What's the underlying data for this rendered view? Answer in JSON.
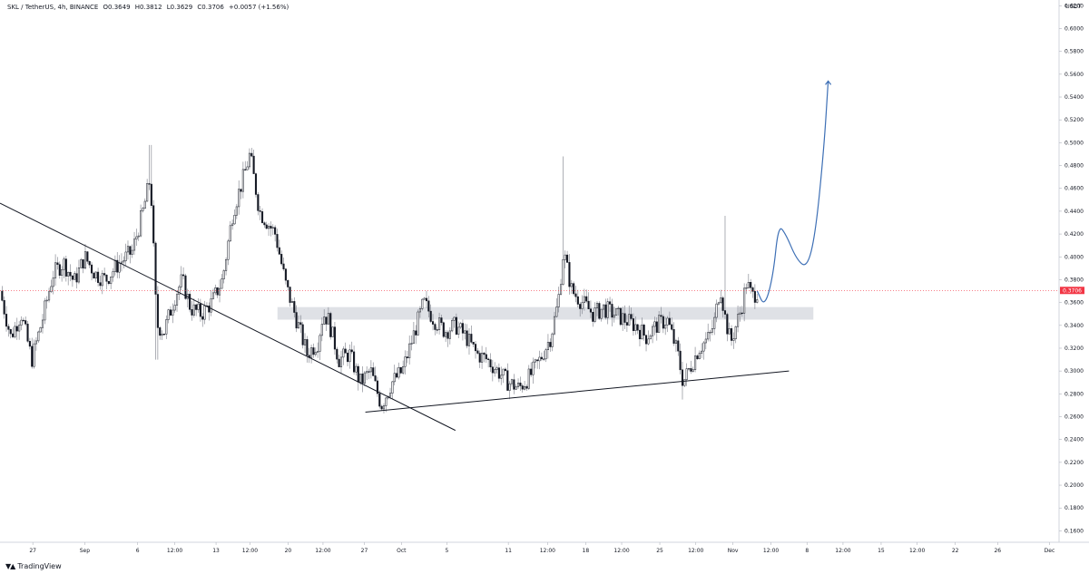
{
  "header": {
    "symbol": "SKL / TetherUS, 4h, BINANCE",
    "open": "O0.3649",
    "high": "H0.3812",
    "low": "L0.3629",
    "close": "C0.3706",
    "change": "+0.0057 (+1.56%)"
  },
  "brand": {
    "logo_icon": "tradingview-logo-icon",
    "name": "TradingView"
  },
  "chart_data": {
    "type": "candlestick",
    "y_unit": "USDT",
    "ylim": [
      0.15,
      0.625
    ],
    "y_ticks": [
      "0.6200",
      "0.6000",
      "0.5800",
      "0.5600",
      "0.5400",
      "0.5200",
      "0.5000",
      "0.4800",
      "0.4600",
      "0.4400",
      "0.4200",
      "0.4000",
      "0.3800",
      "0.3600",
      "0.3400",
      "0.3200",
      "0.3000",
      "0.2800",
      "0.2600",
      "0.2400",
      "0.2200",
      "0.2000",
      "0.1800",
      "0.1600"
    ],
    "y_tick_values": [
      0.62,
      0.6,
      0.58,
      0.56,
      0.54,
      0.52,
      0.5,
      0.48,
      0.46,
      0.44,
      0.42,
      0.4,
      0.38,
      0.36,
      0.34,
      0.32,
      0.3,
      0.28,
      0.26,
      0.24,
      0.22,
      0.2,
      0.18,
      0.16
    ],
    "x_tick_labels": [
      "27",
      "Sep",
      "6",
      "12:00",
      "13",
      "12:00",
      "20",
      "12:00",
      "27",
      "Oct",
      "5",
      "11",
      "12:00",
      "18",
      "12:00",
      "25",
      "12:00",
      "Nov",
      "12:00",
      "8",
      "12:00",
      "15",
      "12:00",
      "22",
      "26",
      "Dec"
    ],
    "x_tick_fracs": [
      0.031,
      0.08,
      0.13,
      0.165,
      0.204,
      0.236,
      0.272,
      0.305,
      0.344,
      0.379,
      0.422,
      0.48,
      0.517,
      0.553,
      0.587,
      0.623,
      0.657,
      0.692,
      0.728,
      0.762,
      0.796,
      0.832,
      0.866,
      0.902,
      0.942,
      0.991
    ],
    "current_price": 0.3706,
    "current_price_label": "0.3706",
    "price_path": [
      [
        0.0,
        0.37
      ],
      [
        0.01,
        0.33
      ],
      [
        0.02,
        0.35
      ],
      [
        0.03,
        0.31
      ],
      [
        0.04,
        0.345
      ],
      [
        0.05,
        0.385
      ],
      [
        0.06,
        0.395
      ],
      [
        0.07,
        0.378
      ],
      [
        0.08,
        0.4
      ],
      [
        0.09,
        0.385
      ],
      [
        0.1,
        0.38
      ],
      [
        0.11,
        0.392
      ],
      [
        0.125,
        0.405
      ],
      [
        0.135,
        0.44
      ],
      [
        0.142,
        0.47
      ],
      [
        0.148,
        0.34
      ],
      [
        0.155,
        0.335
      ],
      [
        0.165,
        0.365
      ],
      [
        0.172,
        0.38
      ],
      [
        0.18,
        0.355
      ],
      [
        0.19,
        0.35
      ],
      [
        0.2,
        0.36
      ],
      [
        0.21,
        0.38
      ],
      [
        0.22,
        0.44
      ],
      [
        0.23,
        0.47
      ],
      [
        0.236,
        0.49
      ],
      [
        0.245,
        0.44
      ],
      [
        0.26,
        0.42
      ],
      [
        0.27,
        0.375
      ],
      [
        0.28,
        0.345
      ],
      [
        0.29,
        0.315
      ],
      [
        0.3,
        0.325
      ],
      [
        0.305,
        0.35
      ],
      [
        0.31,
        0.345
      ],
      [
        0.32,
        0.31
      ],
      [
        0.33,
        0.315
      ],
      [
        0.34,
        0.29
      ],
      [
        0.35,
        0.3
      ],
      [
        0.36,
        0.27
      ],
      [
        0.37,
        0.29
      ],
      [
        0.38,
        0.3
      ],
      [
        0.39,
        0.33
      ],
      [
        0.4,
        0.36
      ],
      [
        0.41,
        0.345
      ],
      [
        0.42,
        0.335
      ],
      [
        0.43,
        0.34
      ],
      [
        0.44,
        0.33
      ],
      [
        0.45,
        0.315
      ],
      [
        0.46,
        0.31
      ],
      [
        0.47,
        0.3
      ],
      [
        0.48,
        0.29
      ],
      [
        0.49,
        0.285
      ],
      [
        0.5,
        0.295
      ],
      [
        0.51,
        0.31
      ],
      [
        0.52,
        0.33
      ],
      [
        0.527,
        0.36
      ],
      [
        0.532,
        0.405
      ],
      [
        0.54,
        0.37
      ],
      [
        0.55,
        0.36
      ],
      [
        0.56,
        0.35
      ],
      [
        0.57,
        0.355
      ],
      [
        0.58,
        0.35
      ],
      [
        0.59,
        0.345
      ],
      [
        0.6,
        0.34
      ],
      [
        0.61,
        0.33
      ],
      [
        0.62,
        0.34
      ],
      [
        0.63,
        0.345
      ],
      [
        0.64,
        0.315
      ],
      [
        0.645,
        0.29
      ],
      [
        0.65,
        0.3
      ],
      [
        0.66,
        0.32
      ],
      [
        0.67,
        0.33
      ],
      [
        0.675,
        0.345
      ],
      [
        0.68,
        0.375
      ],
      [
        0.685,
        0.345
      ],
      [
        0.69,
        0.325
      ],
      [
        0.7,
        0.355
      ],
      [
        0.705,
        0.378
      ],
      [
        0.71,
        0.365
      ],
      [
        0.715,
        0.37
      ]
    ],
    "annotations": {
      "descending_trendline": [
        [
          0.0,
          0.447
        ],
        [
          0.43,
          0.248
        ]
      ],
      "ascending_trendline": [
        [
          0.345,
          0.264
        ],
        [
          0.745,
          0.3
        ]
      ],
      "support_zone": {
        "price_top": 0.356,
        "price_bottom": 0.345,
        "from": 0.262,
        "to": 0.768
      },
      "projection_path": [
        [
          0.715,
          0.37
        ],
        [
          0.722,
          0.356
        ],
        [
          0.73,
          0.383
        ],
        [
          0.735,
          0.428
        ],
        [
          0.742,
          0.42
        ],
        [
          0.752,
          0.398
        ],
        [
          0.762,
          0.39
        ],
        [
          0.77,
          0.42
        ],
        [
          0.778,
          0.495
        ],
        [
          0.782,
          0.554
        ]
      ]
    }
  }
}
